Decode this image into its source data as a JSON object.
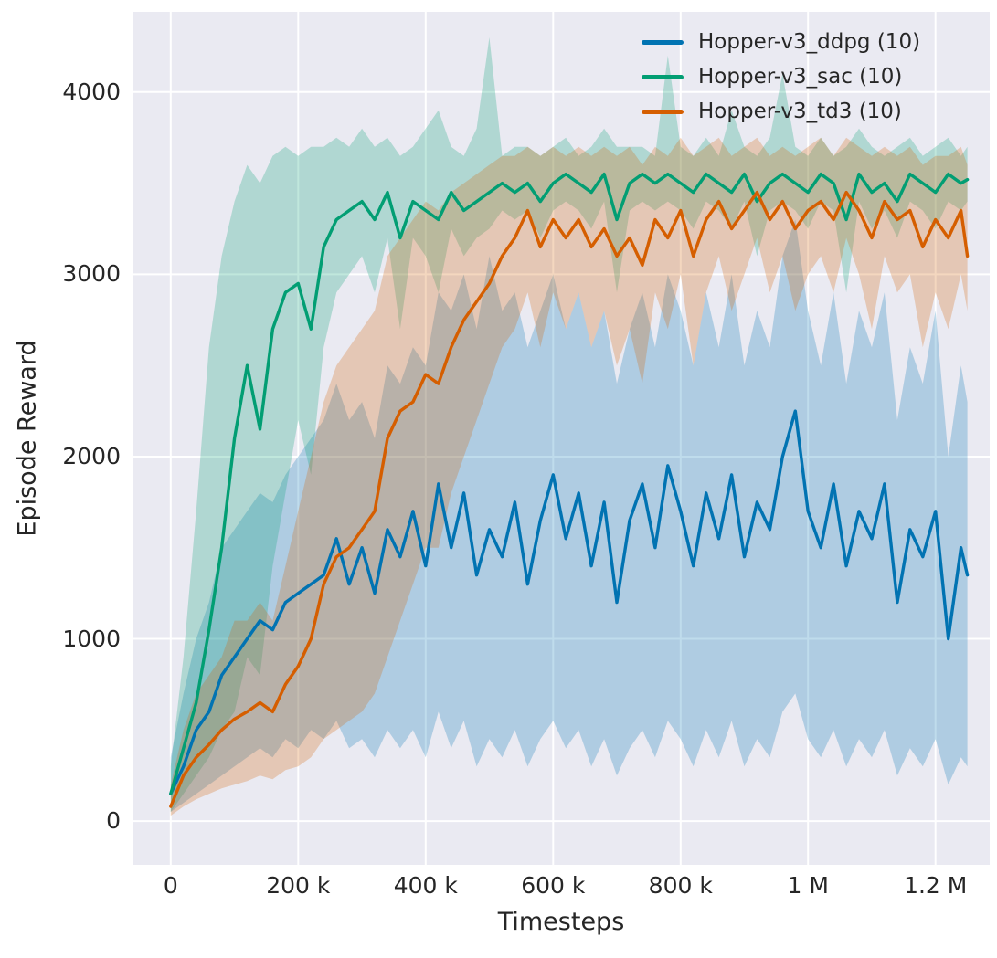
{
  "chart_data": {
    "type": "line",
    "title": "",
    "xlabel": "Timesteps",
    "ylabel": "Episode Reward",
    "x_unit": "timesteps (x values stored in thousands)",
    "xlim": [
      -60,
      1285
    ],
    "ylim": [
      -240,
      4440
    ],
    "grid": true,
    "plot_bg": "#eaeaf2",
    "grid_color": "#ffffff",
    "text_color": "#262626",
    "band_opacity": 0.25,
    "legend_position": "top-right",
    "x_ticks": [
      {
        "v": 0,
        "label": "0"
      },
      {
        "v": 200,
        "label": "200 k"
      },
      {
        "v": 400,
        "label": "400 k"
      },
      {
        "v": 600,
        "label": "600 k"
      },
      {
        "v": 800,
        "label": "800 k"
      },
      {
        "v": 1000,
        "label": "1 M"
      },
      {
        "v": 1200,
        "label": "1.2 M"
      }
    ],
    "y_ticks": [
      {
        "v": 0,
        "label": "0"
      },
      {
        "v": 1000,
        "label": "1000"
      },
      {
        "v": 2000,
        "label": "2000"
      },
      {
        "v": 3000,
        "label": "3000"
      },
      {
        "v": 4000,
        "label": "4000"
      }
    ],
    "x_k": [
      0,
      20,
      40,
      60,
      80,
      100,
      120,
      140,
      160,
      180,
      200,
      220,
      240,
      260,
      280,
      300,
      320,
      340,
      360,
      380,
      400,
      420,
      440,
      460,
      480,
      500,
      520,
      540,
      560,
      580,
      600,
      620,
      640,
      660,
      680,
      700,
      720,
      740,
      760,
      780,
      800,
      820,
      840,
      860,
      880,
      900,
      920,
      940,
      960,
      980,
      1000,
      1020,
      1040,
      1060,
      1080,
      1100,
      1120,
      1140,
      1160,
      1180,
      1200,
      1220,
      1240,
      1250
    ],
    "series": [
      {
        "name": "Hopper-v3_ddpg (10)",
        "color": "#0173b2",
        "mean": [
          150,
          300,
          500,
          600,
          800,
          900,
          1000,
          1100,
          1050,
          1200,
          1250,
          1300,
          1350,
          1550,
          1300,
          1500,
          1250,
          1600,
          1450,
          1700,
          1400,
          1850,
          1500,
          1800,
          1350,
          1600,
          1450,
          1750,
          1300,
          1650,
          1900,
          1550,
          1800,
          1400,
          1750,
          1200,
          1650,
          1850,
          1500,
          1950,
          1700,
          1400,
          1800,
          1550,
          1900,
          1450,
          1750,
          1600,
          2000,
          2250,
          1700,
          1500,
          1850,
          1400,
          1700,
          1550,
          1850,
          1200,
          1600,
          1450,
          1700,
          1000,
          1500,
          1350
        ],
        "low": [
          50,
          100,
          150,
          200,
          250,
          300,
          350,
          400,
          350,
          450,
          400,
          500,
          450,
          550,
          400,
          450,
          350,
          500,
          400,
          500,
          350,
          600,
          400,
          550,
          300,
          450,
          350,
          500,
          300,
          450,
          550,
          400,
          500,
          300,
          450,
          250,
          400,
          500,
          350,
          550,
          450,
          300,
          500,
          350,
          550,
          300,
          450,
          350,
          600,
          700,
          450,
          350,
          500,
          300,
          450,
          350,
          500,
          250,
          400,
          300,
          450,
          200,
          350,
          300
        ],
        "high": [
          350,
          700,
          1000,
          1200,
          1500,
          1600,
          1700,
          1800,
          1750,
          1900,
          2000,
          2100,
          2200,
          2400,
          2200,
          2300,
          2100,
          2500,
          2400,
          2600,
          2500,
          2900,
          2800,
          3000,
          2700,
          3100,
          2800,
          2900,
          2600,
          2800,
          3000,
          2700,
          2900,
          2600,
          2800,
          2400,
          2700,
          2900,
          2600,
          3000,
          2800,
          2500,
          2900,
          2600,
          3000,
          2500,
          2800,
          2600,
          3100,
          3300,
          2800,
          2500,
          2900,
          2400,
          2800,
          2600,
          2900,
          2200,
          2600,
          2400,
          2800,
          2000,
          2500,
          2300
        ]
      },
      {
        "name": "Hopper-v3_sac (10)",
        "color": "#029e73",
        "mean": [
          150,
          400,
          650,
          1050,
          1500,
          2100,
          2500,
          2150,
          2700,
          2900,
          2950,
          2700,
          3150,
          3300,
          3350,
          3400,
          3300,
          3450,
          3200,
          3400,
          3350,
          3300,
          3450,
          3350,
          3400,
          3450,
          3500,
          3450,
          3500,
          3400,
          3500,
          3550,
          3500,
          3450,
          3550,
          3300,
          3500,
          3550,
          3500,
          3550,
          3500,
          3450,
          3550,
          3500,
          3450,
          3550,
          3400,
          3500,
          3550,
          3500,
          3450,
          3550,
          3500,
          3300,
          3550,
          3450,
          3500,
          3400,
          3550,
          3500,
          3450,
          3550,
          3500,
          3520
        ],
        "low": [
          50,
          150,
          250,
          350,
          500,
          600,
          900,
          800,
          1400,
          1800,
          2200,
          1900,
          2600,
          2900,
          3000,
          3100,
          2900,
          3200,
          2700,
          3200,
          3100,
          2900,
          3250,
          3100,
          3200,
          3250,
          3350,
          3300,
          3350,
          3200,
          3350,
          3400,
          3350,
          3250,
          3400,
          2900,
          3350,
          3400,
          3350,
          3400,
          3350,
          3250,
          3400,
          3350,
          3250,
          3400,
          3100,
          3350,
          3400,
          3350,
          3250,
          3400,
          3350,
          2900,
          3400,
          3250,
          3350,
          3200,
          3400,
          3350,
          3250,
          3400,
          3350,
          3400
        ],
        "high": [
          300,
          900,
          1700,
          2600,
          3100,
          3400,
          3600,
          3500,
          3650,
          3700,
          3650,
          3700,
          3700,
          3750,
          3700,
          3800,
          3700,
          3750,
          3650,
          3700,
          3800,
          3900,
          3700,
          3650,
          3800,
          4300,
          3650,
          3700,
          3700,
          3650,
          3700,
          3750,
          3650,
          3700,
          3800,
          3700,
          3700,
          3700,
          3650,
          4200,
          3700,
          3650,
          3750,
          3650,
          3900,
          3700,
          3650,
          3750,
          4100,
          3700,
          3650,
          3750,
          3650,
          3700,
          3800,
          3700,
          3650,
          3700,
          3750,
          3650,
          3700,
          3750,
          3650,
          3700
        ]
      },
      {
        "name": "Hopper-v3_td3 (10)",
        "color": "#d55e00",
        "mean": [
          80,
          250,
          350,
          420,
          500,
          560,
          600,
          650,
          600,
          750,
          850,
          1000,
          1300,
          1450,
          1500,
          1600,
          1700,
          2100,
          2250,
          2300,
          2450,
          2400,
          2600,
          2750,
          2850,
          2950,
          3100,
          3200,
          3350,
          3150,
          3300,
          3200,
          3300,
          3150,
          3250,
          3100,
          3200,
          3050,
          3300,
          3200,
          3350,
          3100,
          3300,
          3400,
          3250,
          3350,
          3450,
          3300,
          3400,
          3250,
          3350,
          3400,
          3300,
          3450,
          3350,
          3200,
          3400,
          3300,
          3350,
          3150,
          3300,
          3200,
          3350,
          3100
        ],
        "low": [
          30,
          80,
          120,
          150,
          180,
          200,
          220,
          250,
          230,
          280,
          300,
          350,
          450,
          500,
          550,
          600,
          700,
          900,
          1100,
          1300,
          1500,
          1500,
          1800,
          2000,
          2200,
          2400,
          2600,
          2700,
          2900,
          2600,
          2900,
          2700,
          2900,
          2600,
          2800,
          2500,
          2700,
          2400,
          2900,
          2700,
          3000,
          2500,
          2900,
          3100,
          2800,
          3000,
          3200,
          2900,
          3100,
          2800,
          3000,
          3100,
          2900,
          3200,
          3000,
          2700,
          3100,
          2900,
          3000,
          2600,
          2900,
          2700,
          3000,
          2800
        ],
        "high": [
          200,
          500,
          700,
          800,
          900,
          1100,
          1100,
          1200,
          1100,
          1400,
          1700,
          2000,
          2300,
          2500,
          2600,
          2700,
          2800,
          3100,
          3200,
          3300,
          3400,
          3350,
          3450,
          3500,
          3550,
          3600,
          3650,
          3650,
          3700,
          3650,
          3700,
          3650,
          3700,
          3650,
          3700,
          3650,
          3700,
          3600,
          3700,
          3650,
          3750,
          3650,
          3700,
          3750,
          3650,
          3700,
          3750,
          3650,
          3700,
          3650,
          3700,
          3750,
          3650,
          3750,
          3700,
          3650,
          3700,
          3650,
          3700,
          3600,
          3650,
          3650,
          3700,
          3600
        ]
      }
    ]
  }
}
